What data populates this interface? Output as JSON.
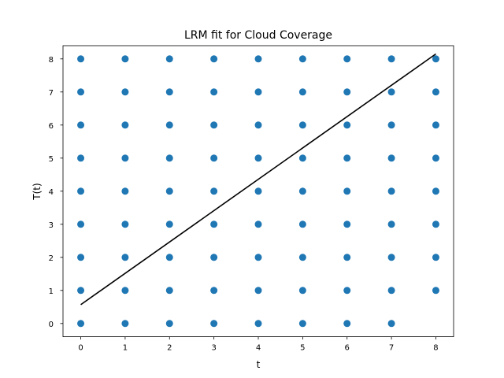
{
  "chart_data": {
    "type": "scatter",
    "title": "LRM fit for Cloud Coverage",
    "xlabel": "t",
    "ylabel": "T(t)",
    "xlim": [
      -0.4,
      8.4
    ],
    "ylim": [
      -0.4,
      8.4
    ],
    "xticks": [
      0,
      1,
      2,
      3,
      4,
      5,
      6,
      7,
      8
    ],
    "yticks": [
      0,
      1,
      2,
      3,
      4,
      5,
      6,
      7,
      8
    ],
    "grid": false,
    "series": [
      {
        "name": "observations",
        "kind": "scatter",
        "color": "#1f77b4",
        "points": [
          [
            0,
            0
          ],
          [
            0,
            1
          ],
          [
            0,
            2
          ],
          [
            0,
            3
          ],
          [
            0,
            4
          ],
          [
            0,
            5
          ],
          [
            0,
            6
          ],
          [
            0,
            7
          ],
          [
            0,
            8
          ],
          [
            1,
            0
          ],
          [
            1,
            1
          ],
          [
            1,
            2
          ],
          [
            1,
            3
          ],
          [
            1,
            4
          ],
          [
            1,
            5
          ],
          [
            1,
            6
          ],
          [
            1,
            7
          ],
          [
            1,
            8
          ],
          [
            2,
            0
          ],
          [
            2,
            1
          ],
          [
            2,
            2
          ],
          [
            2,
            3
          ],
          [
            2,
            4
          ],
          [
            2,
            5
          ],
          [
            2,
            6
          ],
          [
            2,
            7
          ],
          [
            2,
            8
          ],
          [
            3,
            0
          ],
          [
            3,
            1
          ],
          [
            3,
            2
          ],
          [
            3,
            3
          ],
          [
            3,
            4
          ],
          [
            3,
            5
          ],
          [
            3,
            6
          ],
          [
            3,
            7
          ],
          [
            3,
            8
          ],
          [
            4,
            0
          ],
          [
            4,
            1
          ],
          [
            4,
            2
          ],
          [
            4,
            3
          ],
          [
            4,
            4
          ],
          [
            4,
            5
          ],
          [
            4,
            6
          ],
          [
            4,
            7
          ],
          [
            4,
            8
          ],
          [
            5,
            0
          ],
          [
            5,
            1
          ],
          [
            5,
            2
          ],
          [
            5,
            3
          ],
          [
            5,
            4
          ],
          [
            5,
            5
          ],
          [
            5,
            6
          ],
          [
            5,
            7
          ],
          [
            5,
            8
          ],
          [
            6,
            0
          ],
          [
            6,
            1
          ],
          [
            6,
            2
          ],
          [
            6,
            3
          ],
          [
            6,
            4
          ],
          [
            6,
            5
          ],
          [
            6,
            6
          ],
          [
            6,
            7
          ],
          [
            6,
            8
          ],
          [
            7,
            0
          ],
          [
            7,
            1
          ],
          [
            7,
            2
          ],
          [
            7,
            3
          ],
          [
            7,
            4
          ],
          [
            7,
            5
          ],
          [
            7,
            6
          ],
          [
            7,
            7
          ],
          [
            7,
            8
          ],
          [
            8,
            1
          ],
          [
            8,
            2
          ],
          [
            8,
            3
          ],
          [
            8,
            4
          ],
          [
            8,
            5
          ],
          [
            8,
            6
          ],
          [
            8,
            7
          ],
          [
            8,
            8
          ]
        ]
      },
      {
        "name": "LRM fit",
        "kind": "line",
        "color": "#000000",
        "x": [
          0,
          8
        ],
        "y": [
          0.57,
          8.15
        ]
      }
    ]
  }
}
